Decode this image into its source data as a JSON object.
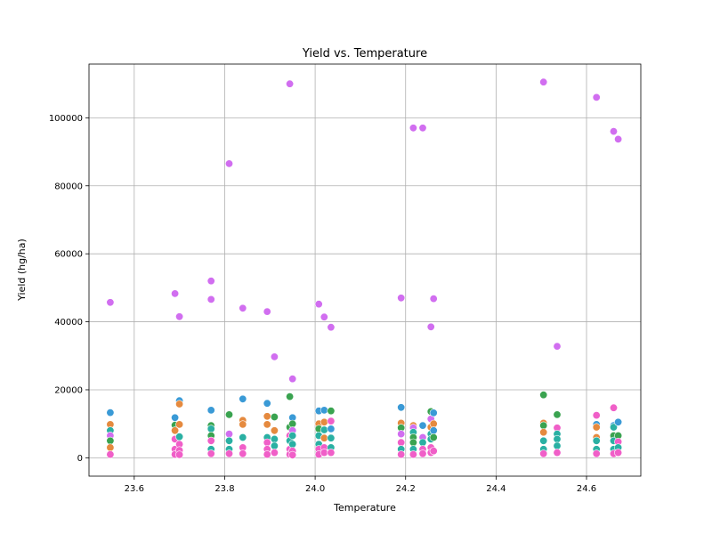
{
  "chart_data": {
    "type": "scatter",
    "title": "Yield vs. Temperature",
    "xlabel": "Temperature",
    "ylabel": "Yield (hg/ha)",
    "xlim": [
      23.5,
      24.72
    ],
    "ylim": [
      -5400,
      115800
    ],
    "x_ticks": [
      23.6,
      23.8,
      24.0,
      24.2,
      24.4,
      24.6
    ],
    "x_tick_labels": [
      "23.6",
      "23.8",
      "24.0",
      "24.2",
      "24.4",
      "24.6"
    ],
    "y_ticks": [
      0,
      20000,
      40000,
      60000,
      80000,
      100000
    ],
    "y_tick_labels": [
      "0",
      "20000",
      "40000",
      "60000",
      "80000",
      "100000"
    ],
    "grid": true,
    "legend": null,
    "colors": {
      "orange": "#e58a3f",
      "green": "#3aa350",
      "teal": "#2ab0a3",
      "blue": "#3a9ad6",
      "violet": "#d16ef0",
      "pink": "#f05fc8"
    },
    "points": [
      [
        23.547,
        45700,
        "violet"
      ],
      [
        23.547,
        13300,
        "blue"
      ],
      [
        23.547,
        9800,
        "orange"
      ],
      [
        23.547,
        8000,
        "teal"
      ],
      [
        23.547,
        6500,
        "violet"
      ],
      [
        23.547,
        5000,
        "green"
      ],
      [
        23.547,
        3000,
        "orange"
      ],
      [
        23.547,
        1000,
        "pink"
      ],
      [
        23.69,
        48300,
        "violet"
      ],
      [
        23.69,
        11800,
        "blue"
      ],
      [
        23.69,
        9600,
        "green"
      ],
      [
        23.69,
        8000,
        "orange"
      ],
      [
        23.69,
        5500,
        "pink"
      ],
      [
        23.69,
        2500,
        "pink"
      ],
      [
        23.69,
        1000,
        "pink"
      ],
      [
        23.7,
        41500,
        "violet"
      ],
      [
        23.7,
        16800,
        "blue"
      ],
      [
        23.7,
        15800,
        "orange"
      ],
      [
        23.7,
        9800,
        "orange"
      ],
      [
        23.7,
        6200,
        "teal"
      ],
      [
        23.7,
        4000,
        "pink"
      ],
      [
        23.7,
        2200,
        "pink"
      ],
      [
        23.7,
        900,
        "pink"
      ],
      [
        23.77,
        52000,
        "violet"
      ],
      [
        23.77,
        46600,
        "violet"
      ],
      [
        23.77,
        14000,
        "blue"
      ],
      [
        23.77,
        9500,
        "green"
      ],
      [
        23.77,
        8500,
        "teal"
      ],
      [
        23.77,
        6500,
        "green"
      ],
      [
        23.77,
        5000,
        "pink"
      ],
      [
        23.77,
        2500,
        "teal"
      ],
      [
        23.77,
        1200,
        "pink"
      ],
      [
        23.81,
        86500,
        "violet"
      ],
      [
        23.81,
        12700,
        "green"
      ],
      [
        23.81,
        7000,
        "violet"
      ],
      [
        23.81,
        5000,
        "teal"
      ],
      [
        23.81,
        2500,
        "teal"
      ],
      [
        23.81,
        1200,
        "pink"
      ],
      [
        23.84,
        44000,
        "violet"
      ],
      [
        23.84,
        17300,
        "blue"
      ],
      [
        23.84,
        11000,
        "orange"
      ],
      [
        23.84,
        9800,
        "orange"
      ],
      [
        23.84,
        6000,
        "teal"
      ],
      [
        23.84,
        3000,
        "pink"
      ],
      [
        23.84,
        1200,
        "pink"
      ],
      [
        23.894,
        43000,
        "violet"
      ],
      [
        23.894,
        16000,
        "blue"
      ],
      [
        23.894,
        12200,
        "orange"
      ],
      [
        23.894,
        9800,
        "orange"
      ],
      [
        23.894,
        6000,
        "teal"
      ],
      [
        23.894,
        4500,
        "pink"
      ],
      [
        23.894,
        2500,
        "pink"
      ],
      [
        23.894,
        1000,
        "pink"
      ],
      [
        23.91,
        29700,
        "violet"
      ],
      [
        23.91,
        12000,
        "green"
      ],
      [
        23.91,
        8000,
        "orange"
      ],
      [
        23.91,
        5500,
        "teal"
      ],
      [
        23.91,
        3500,
        "teal"
      ],
      [
        23.91,
        1500,
        "pink"
      ],
      [
        23.944,
        110000,
        "violet"
      ],
      [
        23.944,
        18000,
        "green"
      ],
      [
        23.944,
        9000,
        "green"
      ],
      [
        23.944,
        6500,
        "pink"
      ],
      [
        23.944,
        5000,
        "teal"
      ],
      [
        23.944,
        2500,
        "pink"
      ],
      [
        23.944,
        1000,
        "pink"
      ],
      [
        23.95,
        23200,
        "violet"
      ],
      [
        23.95,
        11800,
        "blue"
      ],
      [
        23.95,
        10000,
        "green"
      ],
      [
        23.95,
        8000,
        "violet"
      ],
      [
        23.95,
        6500,
        "teal"
      ],
      [
        23.95,
        4000,
        "teal"
      ],
      [
        23.95,
        2000,
        "pink"
      ],
      [
        23.95,
        800,
        "pink"
      ],
      [
        24.008,
        45200,
        "violet"
      ],
      [
        24.008,
        13800,
        "blue"
      ],
      [
        24.008,
        10000,
        "orange"
      ],
      [
        24.008,
        8500,
        "green"
      ],
      [
        24.008,
        6500,
        "teal"
      ],
      [
        24.008,
        4000,
        "teal"
      ],
      [
        24.008,
        2500,
        "pink"
      ],
      [
        24.008,
        1000,
        "pink"
      ],
      [
        24.02,
        41400,
        "violet"
      ],
      [
        24.02,
        14000,
        "blue"
      ],
      [
        24.02,
        10500,
        "orange"
      ],
      [
        24.02,
        8200,
        "teal"
      ],
      [
        24.02,
        5800,
        "orange"
      ],
      [
        24.02,
        3000,
        "pink"
      ],
      [
        24.02,
        1500,
        "pink"
      ],
      [
        24.035,
        38400,
        "violet"
      ],
      [
        24.035,
        13800,
        "green"
      ],
      [
        24.035,
        10800,
        "pink"
      ],
      [
        24.035,
        8500,
        "blue"
      ],
      [
        24.035,
        5800,
        "teal"
      ],
      [
        24.035,
        3000,
        "teal"
      ],
      [
        24.035,
        1500,
        "pink"
      ],
      [
        24.19,
        47000,
        "violet"
      ],
      [
        24.19,
        14800,
        "blue"
      ],
      [
        24.19,
        10200,
        "orange"
      ],
      [
        24.19,
        8800,
        "green"
      ],
      [
        24.19,
        7000,
        "violet"
      ],
      [
        24.19,
        4500,
        "pink"
      ],
      [
        24.19,
        2500,
        "teal"
      ],
      [
        24.19,
        1000,
        "pink"
      ],
      [
        24.217,
        97000,
        "violet"
      ],
      [
        24.217,
        9500,
        "orange"
      ],
      [
        24.217,
        8800,
        "violet"
      ],
      [
        24.217,
        7500,
        "teal"
      ],
      [
        24.217,
        6000,
        "green"
      ],
      [
        24.217,
        4500,
        "green"
      ],
      [
        24.217,
        2500,
        "teal"
      ],
      [
        24.217,
        1000,
        "pink"
      ],
      [
        24.238,
        97000,
        "violet"
      ],
      [
        24.238,
        9500,
        "blue"
      ],
      [
        24.238,
        6000,
        "violet"
      ],
      [
        24.238,
        4500,
        "teal"
      ],
      [
        24.238,
        2500,
        "pink"
      ],
      [
        24.238,
        1200,
        "pink"
      ],
      [
        24.256,
        38500,
        "violet"
      ],
      [
        24.256,
        13600,
        "green"
      ],
      [
        24.256,
        11400,
        "violet"
      ],
      [
        24.256,
        9000,
        "orange"
      ],
      [
        24.256,
        7000,
        "teal"
      ],
      [
        24.256,
        5500,
        "teal"
      ],
      [
        24.256,
        3000,
        "pink"
      ],
      [
        24.256,
        1500,
        "pink"
      ],
      [
        24.262,
        46800,
        "violet"
      ],
      [
        24.262,
        13200,
        "blue"
      ],
      [
        24.262,
        10000,
        "orange"
      ],
      [
        24.262,
        8000,
        "blue"
      ],
      [
        24.262,
        6000,
        "green"
      ],
      [
        24.262,
        2000,
        "pink"
      ],
      [
        24.505,
        110500,
        "violet"
      ],
      [
        24.505,
        18500,
        "green"
      ],
      [
        24.505,
        10200,
        "orange"
      ],
      [
        24.505,
        9500,
        "green"
      ],
      [
        24.505,
        7500,
        "orange"
      ],
      [
        24.505,
        5000,
        "teal"
      ],
      [
        24.505,
        2500,
        "teal"
      ],
      [
        24.505,
        1200,
        "pink"
      ],
      [
        24.535,
        32800,
        "violet"
      ],
      [
        24.535,
        12700,
        "green"
      ],
      [
        24.535,
        8800,
        "pink"
      ],
      [
        24.535,
        7000,
        "teal"
      ],
      [
        24.535,
        5500,
        "teal"
      ],
      [
        24.535,
        3500,
        "teal"
      ],
      [
        24.535,
        1500,
        "pink"
      ],
      [
        24.622,
        106000,
        "violet"
      ],
      [
        24.622,
        12500,
        "pink"
      ],
      [
        24.622,
        9800,
        "blue"
      ],
      [
        24.622,
        9000,
        "orange"
      ],
      [
        24.622,
        6000,
        "orange"
      ],
      [
        24.622,
        5000,
        "teal"
      ],
      [
        24.622,
        2500,
        "teal"
      ],
      [
        24.622,
        1200,
        "pink"
      ],
      [
        24.66,
        96000,
        "violet"
      ],
      [
        24.66,
        14700,
        "pink"
      ],
      [
        24.66,
        9500,
        "blue"
      ],
      [
        24.66,
        9000,
        "teal"
      ],
      [
        24.66,
        6500,
        "green"
      ],
      [
        24.66,
        5000,
        "teal"
      ],
      [
        24.66,
        2500,
        "teal"
      ],
      [
        24.66,
        1200,
        "pink"
      ],
      [
        24.67,
        93700,
        "violet"
      ],
      [
        24.67,
        10500,
        "blue"
      ],
      [
        24.67,
        6500,
        "green"
      ],
      [
        24.67,
        4700,
        "pink"
      ],
      [
        24.67,
        3000,
        "teal"
      ],
      [
        24.67,
        1500,
        "pink"
      ]
    ]
  }
}
